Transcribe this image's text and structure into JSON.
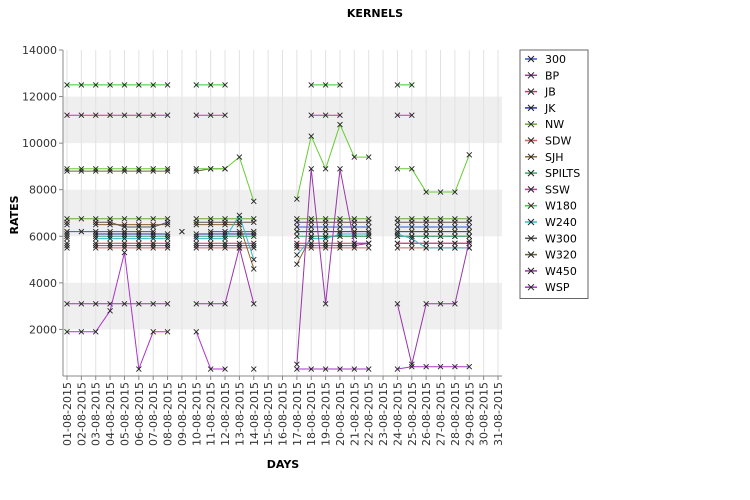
{
  "chart_data": {
    "type": "line",
    "title": "KERNELS",
    "xlabel": "DAYS",
    "ylabel": "RATES",
    "ylim": [
      0,
      14000
    ],
    "yticks": [
      2000,
      4000,
      6000,
      8000,
      10000,
      12000,
      14000
    ],
    "grid": "horizontal alternating bands",
    "legend_position": "right",
    "categories": [
      "01-08-2015",
      "02-08-2015",
      "03-08-2015",
      "04-08-2015",
      "05-08-2015",
      "06-08-2015",
      "07-08-2015",
      "08-08-2015",
      "09-08-2015",
      "10-08-2015",
      "11-08-2015",
      "12-08-2015",
      "13-08-2015",
      "14-08-2015",
      "15-08-2015",
      "16-08-2015",
      "17-08-2015",
      "18-08-2015",
      "19-08-2015",
      "20-08-2015",
      "21-08-2015",
      "22-08-2015",
      "23-08-2015",
      "24-08-2015",
      "25-08-2015",
      "26-08-2015",
      "27-08-2015",
      "28-08-2015",
      "29-08-2015",
      "30-08-2015",
      "31-08-2015"
    ],
    "series": [
      {
        "name": "300",
        "color": "#3355cc",
        "values": [
          6200,
          6200,
          6200,
          6200,
          6200,
          6200,
          6200,
          null,
          6200,
          null,
          6200,
          6200,
          6200,
          6200,
          null,
          null,
          6400,
          6400,
          6400,
          6400,
          6400,
          6400,
          null,
          6400,
          6400,
          6400,
          6400,
          6400,
          6400,
          null,
          null
        ]
      },
      {
        "name": "BP",
        "color": "#aa3399",
        "values": [
          5600,
          null,
          5600,
          5600,
          5600,
          5600,
          5600,
          5600,
          null,
          5600,
          5600,
          5600,
          5600,
          5600,
          null,
          null,
          5600,
          5600,
          5600,
          5600,
          5600,
          5700,
          null,
          5700,
          5700,
          5700,
          5700,
          5700,
          5700,
          null,
          null
        ]
      },
      {
        "name": "JB",
        "color": "#cc3366",
        "values": [
          5700,
          null,
          5700,
          5700,
          5700,
          5700,
          5700,
          5700,
          null,
          5700,
          5700,
          5700,
          5700,
          5700,
          null,
          null,
          5700,
          5700,
          5700,
          5700,
          5700,
          5700,
          null,
          5700,
          5700,
          5700,
          5700,
          5700,
          5700,
          null,
          null
        ]
      },
      {
        "name": "JK",
        "color": "#2233aa",
        "values": [
          6100,
          null,
          6100,
          6100,
          6100,
          6100,
          6100,
          6100,
          null,
          6100,
          6100,
          6100,
          6100,
          6100,
          null,
          null,
          6200,
          6200,
          6200,
          6200,
          6200,
          6200,
          null,
          6200,
          6200,
          6200,
          6200,
          6200,
          6200,
          null,
          null
        ]
      },
      {
        "name": "NW",
        "color": "#66aa33",
        "values": [
          6750,
          6750,
          6750,
          6750,
          6750,
          6750,
          6750,
          6750,
          null,
          6750,
          6750,
          6750,
          6750,
          6750,
          null,
          null,
          6750,
          6750,
          6750,
          6750,
          6750,
          6750,
          null,
          6750,
          6750,
          6750,
          6750,
          6750,
          6750,
          null,
          null
        ]
      },
      {
        "name": "SDW",
        "color": "#cc6655",
        "values": [
          5500,
          null,
          5500,
          5500,
          5500,
          5500,
          5500,
          5500,
          null,
          5500,
          5500,
          5500,
          5500,
          5500,
          null,
          null,
          5500,
          5500,
          5500,
          5500,
          5500,
          5500,
          null,
          5500,
          5500,
          5500,
          5500,
          5500,
          5500,
          null,
          null
        ]
      },
      {
        "name": "SJH",
        "color": "#886633",
        "values": [
          6500,
          null,
          6500,
          6500,
          6500,
          6500,
          6500,
          6500,
          null,
          6500,
          6500,
          6500,
          6500,
          4600,
          null,
          null,
          4800,
          6000,
          6000,
          6000,
          6000,
          6000,
          null,
          6000,
          6000,
          6000,
          6000,
          6000,
          6000,
          null,
          null
        ]
      },
      {
        "name": "SPILTS",
        "color": "#33aa66",
        "values": [
          6000,
          null,
          6000,
          6000,
          6000,
          6000,
          6000,
          6000,
          null,
          6000,
          6000,
          6000,
          6000,
          6000,
          null,
          null,
          6000,
          6000,
          6000,
          6000,
          6000,
          6000,
          null,
          6000,
          6000,
          6000,
          6000,
          6000,
          6000,
          null,
          null
        ]
      },
      {
        "name": "SSW",
        "color": "#cc3399",
        "values": [
          11200,
          11200,
          11200,
          11200,
          11200,
          11200,
          11200,
          11200,
          null,
          11200,
          11200,
          11200,
          null,
          null,
          null,
          null,
          null,
          11200,
          11200,
          11200,
          null,
          null,
          null,
          11200,
          11200,
          null,
          null,
          null,
          null,
          null,
          null
        ]
      },
      {
        "name": "W180",
        "color": "#33cc33",
        "values": [
          12500,
          12500,
          12500,
          12500,
          12500,
          12500,
          12500,
          12500,
          null,
          12500,
          12500,
          12500,
          null,
          null,
          null,
          null,
          null,
          12500,
          12500,
          12500,
          null,
          null,
          null,
          12500,
          12500,
          null,
          null,
          null,
          null,
          null,
          null
        ]
      },
      {
        "name": "W240",
        "color": "#33bbcc",
        "values": [
          5900,
          null,
          5900,
          5900,
          5900,
          5900,
          5900,
          5900,
          null,
          5900,
          5900,
          5900,
          6900,
          5000,
          null,
          null,
          5200,
          5900,
          5900,
          6100,
          6100,
          6100,
          null,
          6100,
          5900,
          5500,
          5500,
          5500,
          5500,
          null,
          null
        ]
      },
      {
        "name": "W300",
        "color": "#555555",
        "values": [
          6600,
          null,
          6600,
          6600,
          6400,
          6400,
          6400,
          6600,
          null,
          6600,
          6600,
          6600,
          6600,
          6600,
          null,
          null,
          6600,
          6600,
          6600,
          6600,
          6600,
          6600,
          null,
          6600,
          6600,
          6600,
          6600,
          6600,
          6600,
          null,
          null
        ]
      },
      {
        "name": "W320",
        "color": "#666633",
        "values": [
          8800,
          8800,
          8800,
          8800,
          8800,
          8800,
          8800,
          8800,
          null,
          8800,
          8900,
          8900,
          null,
          null,
          null,
          null,
          null,
          null,
          null,
          null,
          null,
          null,
          null,
          null,
          null,
          null,
          null,
          null,
          null,
          null,
          null
        ]
      },
      {
        "name": "W450",
        "color": "#9933aa",
        "values": [
          3100,
          3100,
          3100,
          3100,
          3100,
          3100,
          3100,
          3100,
          null,
          3100,
          3100,
          3100,
          5500,
          3100,
          null,
          null,
          500,
          8900,
          3100,
          8900,
          5700,
          5700,
          null,
          3100,
          500,
          3100,
          3100,
          3100,
          5800,
          null,
          null
        ]
      },
      {
        "name": "WSP",
        "color": "#aa33cc",
        "values": [
          1900,
          1900,
          1900,
          2800,
          5300,
          300,
          1900,
          1900,
          null,
          1900,
          300,
          300,
          null,
          300,
          null,
          null,
          300,
          300,
          300,
          300,
          300,
          300,
          null,
          300,
          400,
          400,
          400,
          400,
          400,
          null,
          null
        ]
      }
    ],
    "extra_line": {
      "color": "#66cc33",
      "values": [
        8900,
        8900,
        8900,
        8900,
        8900,
        8900,
        8900,
        8900,
        null,
        8900,
        8900,
        8900,
        9400,
        7500,
        null,
        null,
        7600,
        10300,
        8900,
        10800,
        9400,
        9400,
        null,
        8900,
        8900,
        7900,
        7900,
        7900,
        9500,
        null,
        null
      ]
    }
  }
}
